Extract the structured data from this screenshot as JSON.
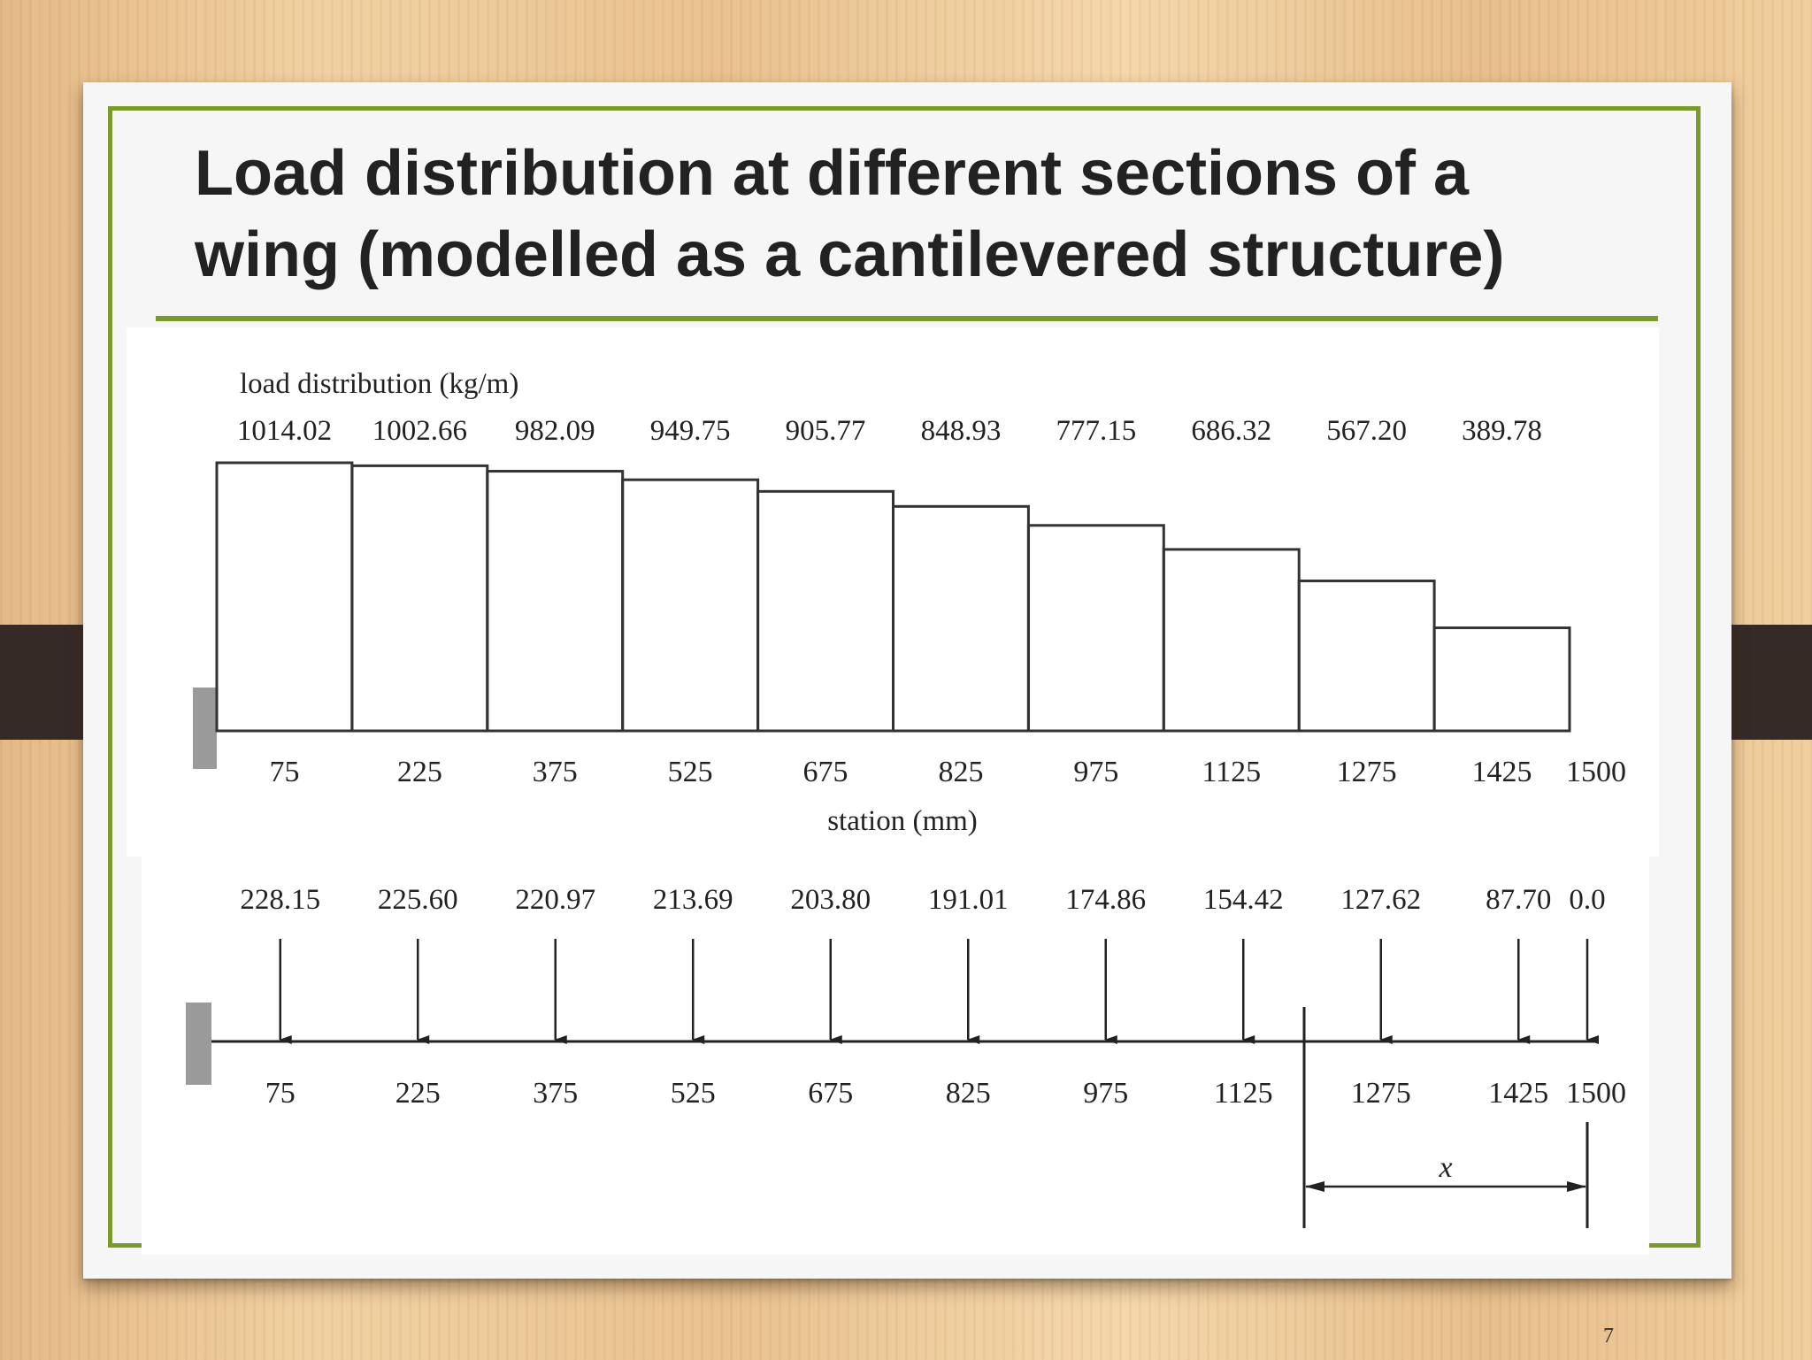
{
  "slide": {
    "title_line1": "Load distribution at different sections of a",
    "title_line2": "wing (modelled as a cantilevered structure)",
    "page_number": "7"
  },
  "top_diagram": {
    "heading": "load distribution (kg/m)",
    "xlabel": "station (mm)",
    "load_values": [
      "1014.02",
      "1002.66",
      "982.09",
      "949.75",
      "905.77",
      "848.93",
      "777.15",
      "686.32",
      "567.20",
      "389.78"
    ],
    "load_numeric": [
      1014.02,
      1002.66,
      982.09,
      949.75,
      905.77,
      848.93,
      777.15,
      686.32,
      567.2,
      389.78
    ],
    "stations": [
      "75",
      "225",
      "375",
      "525",
      "675",
      "825",
      "975",
      "1125",
      "1275",
      "1425",
      "1500"
    ]
  },
  "bottom_diagram": {
    "force_values": [
      "228.15",
      "225.60",
      "220.97",
      "213.69",
      "203.80",
      "191.01",
      "174.86",
      "154.42",
      "127.62",
      "87.70",
      "0.0"
    ],
    "stations": [
      "75",
      "225",
      "375",
      "525",
      "675",
      "825",
      "975",
      "1125",
      "1275",
      "1425",
      "1500"
    ],
    "dimension_label": "x"
  },
  "colors": {
    "frame_accent": "#7a9a2c",
    "tab": "#352a26",
    "support": "#9a9a9a"
  }
}
